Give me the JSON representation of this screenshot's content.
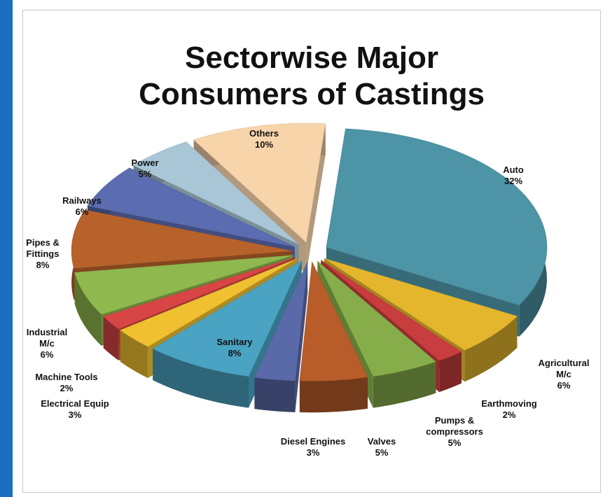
{
  "chart_data": {
    "type": "pie",
    "title_line1": "Sectorwise Major",
    "title_line2": "Consumers of Castings",
    "slices": [
      {
        "label": "Auto",
        "value": 32,
        "value_text": "32%",
        "color": "#4d94a6"
      },
      {
        "label": "Agricultural M/c",
        "value": 6,
        "value_text": "6%",
        "color": "#e3b62e"
      },
      {
        "label": "Earthmoving",
        "value": 2,
        "value_text": "2%",
        "color": "#c83d3d"
      },
      {
        "label": "Pumps & compressors",
        "value": 5,
        "value_text": "5%",
        "color": "#86ad4a"
      },
      {
        "label": "Valves",
        "value": 5,
        "value_text": "5%",
        "color": "#b85c2a"
      },
      {
        "label": "Diesel Engines",
        "value": 3,
        "value_text": "3%",
        "color": "#5a6aa8"
      },
      {
        "label": "Sanitary",
        "value": 8,
        "value_text": "8%",
        "color": "#4aa3c2"
      },
      {
        "label": "Electrical Equip",
        "value": 3,
        "value_text": "3%",
        "color": "#f0c030"
      },
      {
        "label": "Machine Tools",
        "value": 2,
        "value_text": "2%",
        "color": "#d84545"
      },
      {
        "label": "Industrial M/c",
        "value": 6,
        "value_text": "6%",
        "color": "#8fb84e"
      },
      {
        "label": "Pipes & Fittings",
        "value": 8,
        "value_text": "8%",
        "color": "#b8622b"
      },
      {
        "label": "Railways",
        "value": 6,
        "value_text": "6%",
        "color": "#5b6cb0"
      },
      {
        "label": "Power",
        "value": 5,
        "value_text": "5%",
        "color": "#a9c6d6"
      },
      {
        "label": "Others",
        "value": 10,
        "value_text": "10%",
        "color": "#f8d4ab"
      }
    ]
  }
}
